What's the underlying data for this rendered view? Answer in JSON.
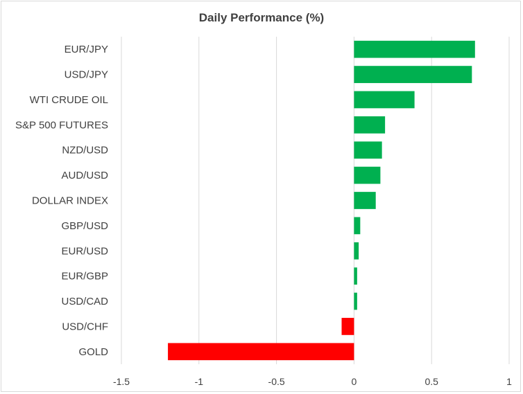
{
  "chart_data": {
    "type": "bar",
    "orientation": "horizontal",
    "title": "Daily Performance (%)",
    "xlabel": "",
    "ylabel": "",
    "categories": [
      "EUR/JPY",
      "USD/JPY",
      "WTI CRUDE OIL",
      "S&P 500 FUTURES",
      "NZD/USD",
      "AUD/USD",
      "DOLLAR INDEX",
      "GBP/USD",
      "EUR/USD",
      "EUR/GBP",
      "USD/CAD",
      "USD/CHF",
      "GOLD"
    ],
    "values": [
      0.78,
      0.76,
      0.39,
      0.2,
      0.18,
      0.17,
      0.14,
      0.04,
      0.03,
      0.02,
      0.02,
      -0.08,
      -1.2
    ],
    "xlim": [
      -1.5,
      1
    ],
    "xticks": [
      -1.5,
      -1,
      -0.5,
      0,
      0.5,
      1
    ],
    "xtick_labels": [
      "-1.5",
      "-1",
      "-0.5",
      "0",
      "0.5",
      "1"
    ],
    "grid": true,
    "legend": "none",
    "colors": {
      "positive": "#00b050",
      "negative": "#ff0000",
      "grid": "#d9d9d9",
      "text": "#404040",
      "border": "#d9d9d9"
    }
  }
}
